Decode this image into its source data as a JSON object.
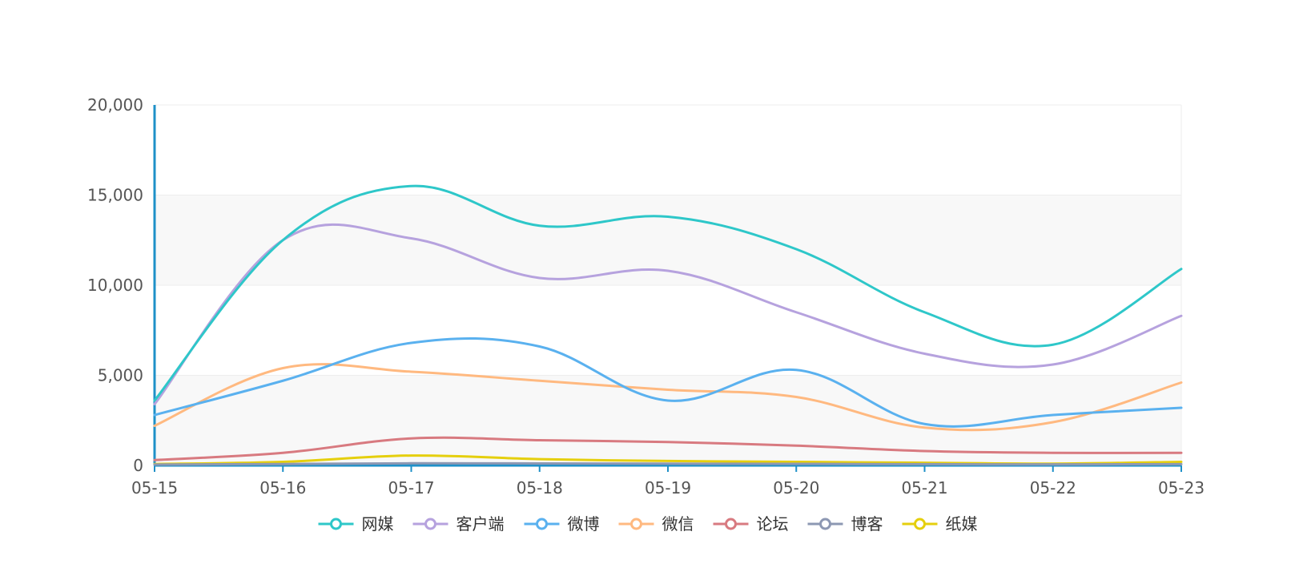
{
  "chart_data": {
    "type": "line",
    "smooth": true,
    "categories": [
      "05-15",
      "05-16",
      "05-17",
      "05-18",
      "05-19",
      "05-20",
      "05-21",
      "05-22",
      "05-23"
    ],
    "ylim": [
      0,
      20000
    ],
    "yticks": [
      0,
      5000,
      10000,
      15000,
      20000
    ],
    "ytick_labels": [
      "0",
      "5,000",
      "10,000",
      "15,000",
      "20,000"
    ],
    "grid": true,
    "legend_position": "bottom-center",
    "series": [
      {
        "name": "网媒",
        "color": "#2ec7c9",
        "values": [
          3600,
          12500,
          15500,
          13300,
          13800,
          12000,
          8500,
          6700,
          10900
        ]
      },
      {
        "name": "客户端",
        "color": "#b6a2de",
        "values": [
          3400,
          12500,
          12600,
          10400,
          10800,
          8500,
          6200,
          5600,
          8300
        ]
      },
      {
        "name": "微博",
        "color": "#5ab1ef",
        "values": [
          2800,
          4700,
          6800,
          6600,
          3600,
          5300,
          2300,
          2800,
          3200
        ]
      },
      {
        "name": "微信",
        "color": "#ffb980",
        "values": [
          2200,
          5400,
          5200,
          4700,
          4200,
          3800,
          2100,
          2400,
          4600
        ]
      },
      {
        "name": "论坛",
        "color": "#d87a80",
        "values": [
          300,
          700,
          1500,
          1400,
          1300,
          1100,
          800,
          700,
          700
        ]
      },
      {
        "name": "博客",
        "color": "#8d98b3",
        "values": [
          50,
          80,
          120,
          110,
          100,
          90,
          70,
          60,
          70
        ]
      },
      {
        "name": "纸媒",
        "color": "#e5cf0d",
        "values": [
          80,
          200,
          550,
          350,
          250,
          200,
          150,
          100,
          200
        ]
      }
    ]
  }
}
